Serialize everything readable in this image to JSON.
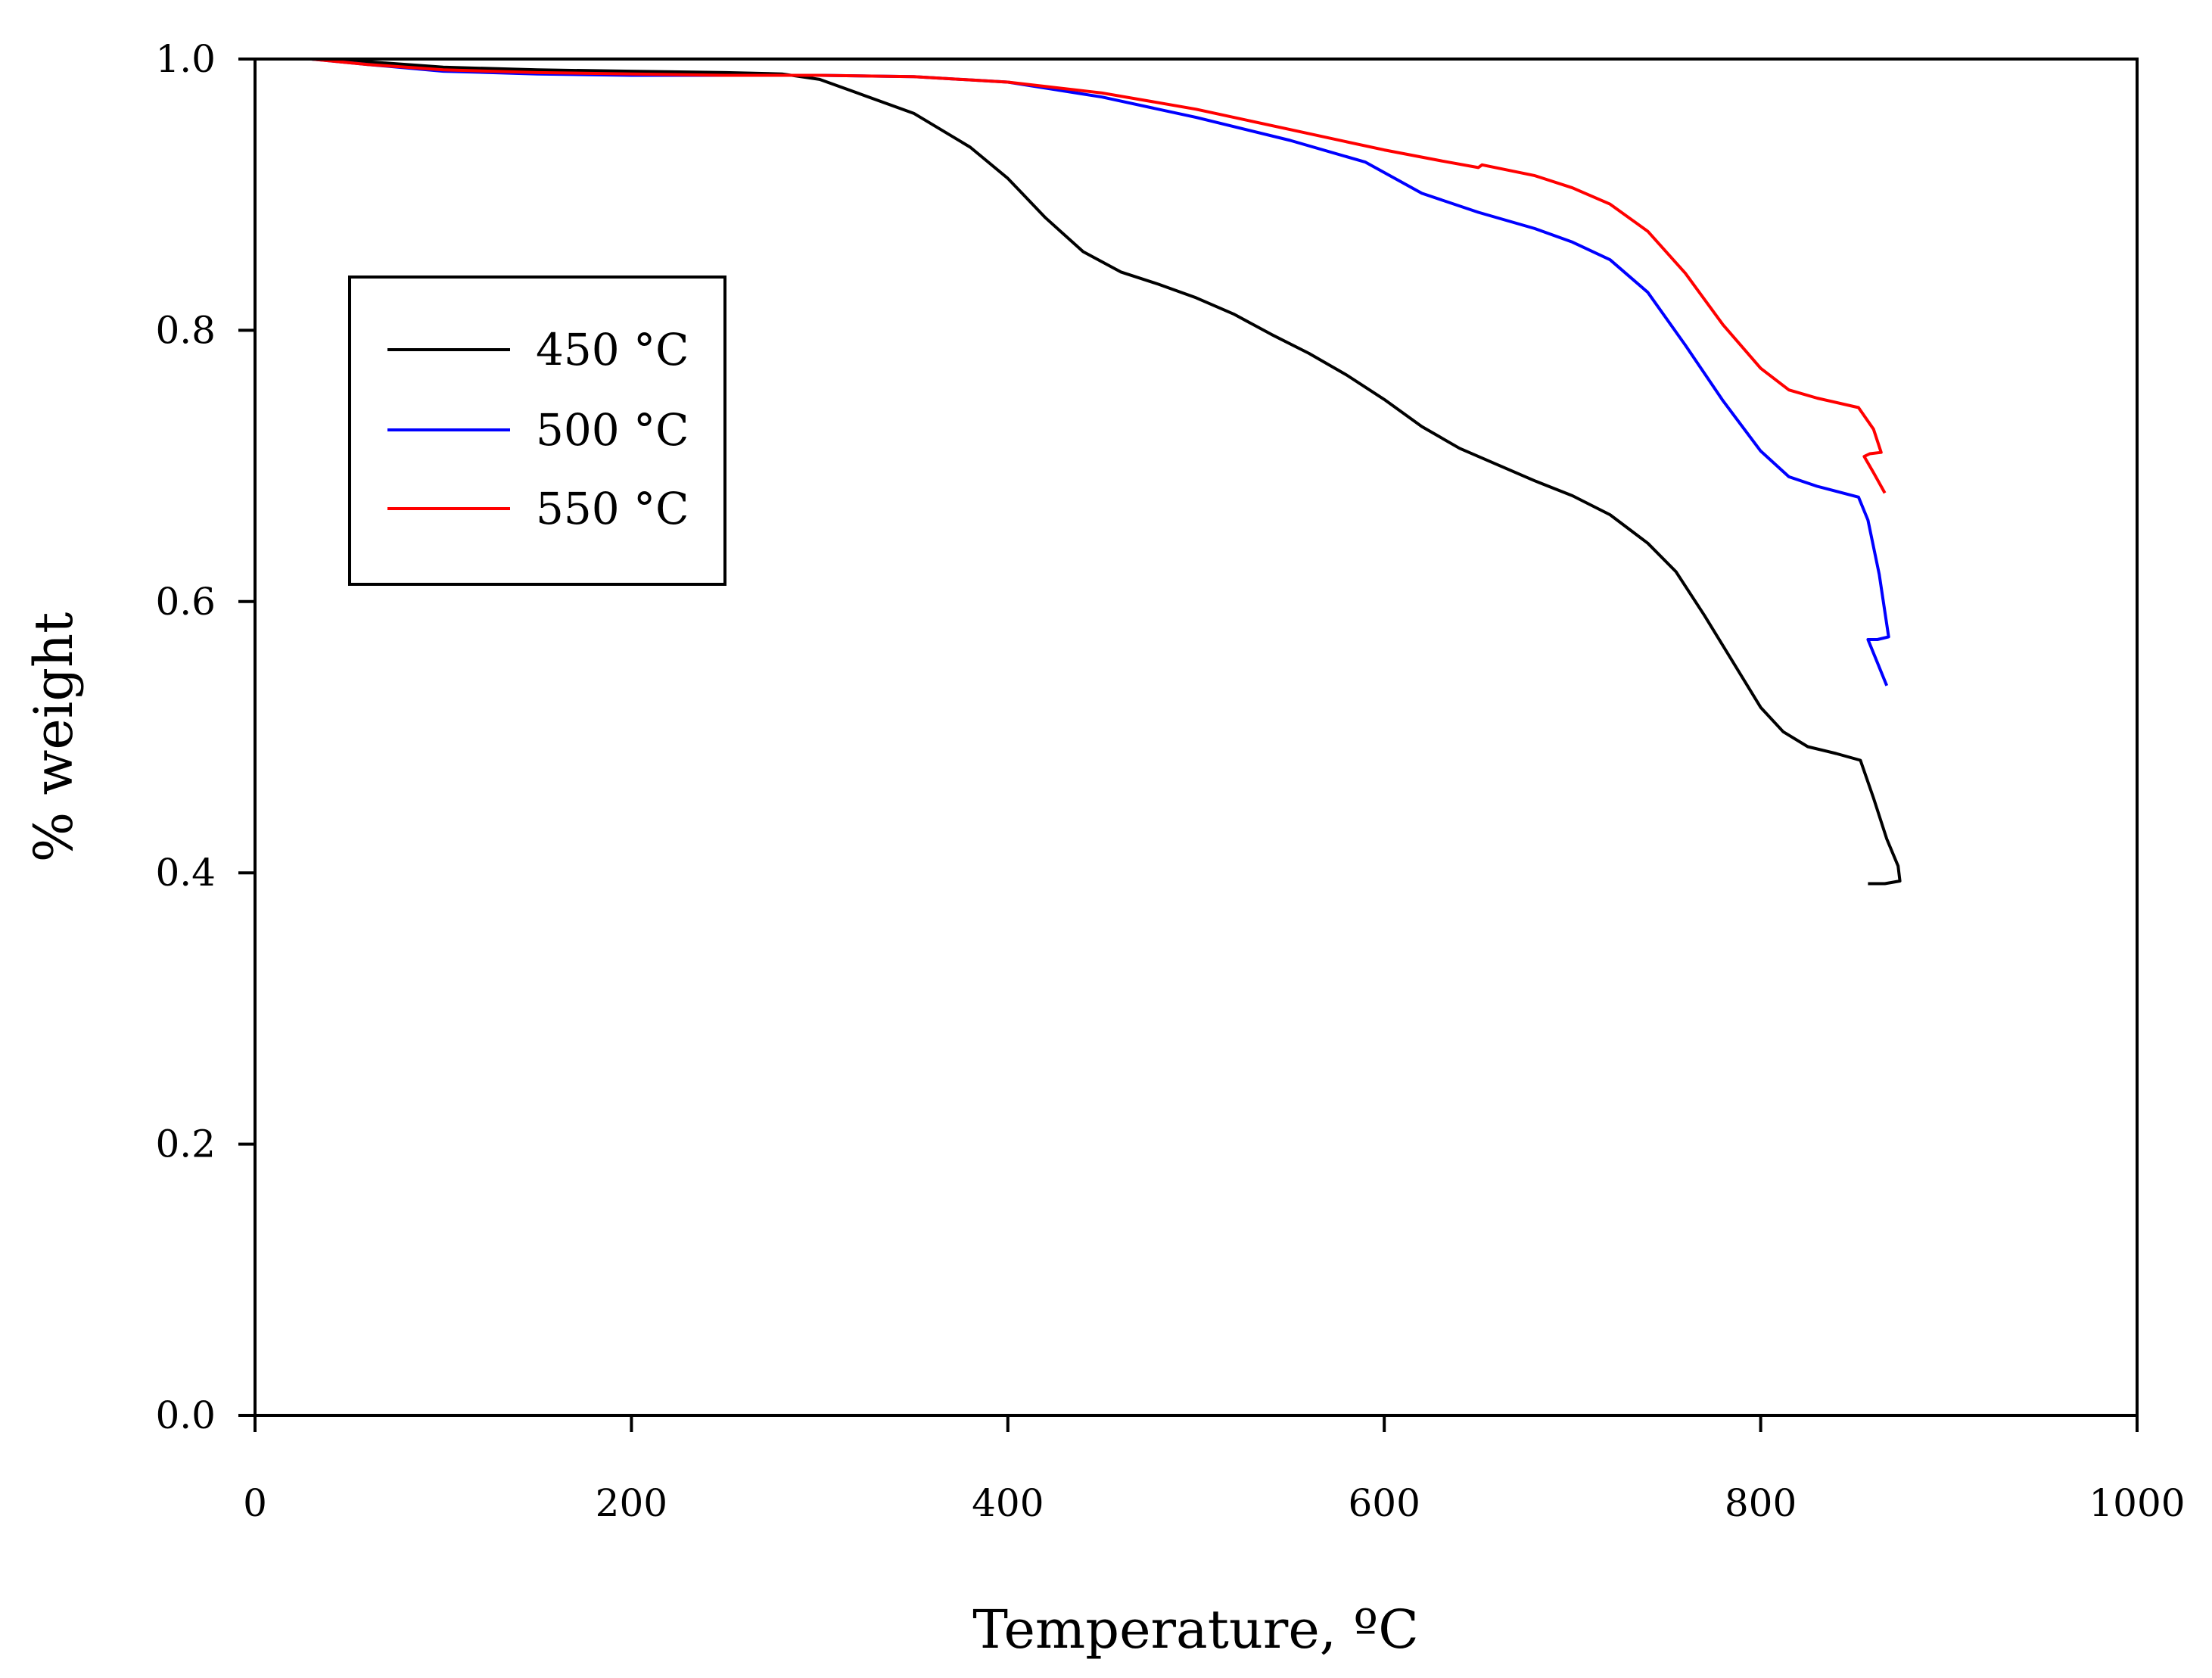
{
  "chart_data": {
    "type": "line",
    "title": "",
    "xlabel": "Temperature, ºC",
    "ylabel": "% weight",
    "xlim": [
      0,
      1000
    ],
    "ylim": [
      0.0,
      1.0
    ],
    "x_ticks": [
      0,
      200,
      400,
      600,
      800,
      1000
    ],
    "x_tick_labels": [
      "0",
      "200",
      "400",
      "600",
      "800",
      "1000"
    ],
    "y_ticks": [
      0.0,
      0.2,
      0.4,
      0.6,
      0.8,
      1.0
    ],
    "y_tick_labels": [
      "0.0",
      "0.2",
      "0.4",
      "0.6",
      "0.8",
      "1.0"
    ],
    "grid": false,
    "legend_position": "upper-left",
    "series": [
      {
        "name": "450 °C",
        "color": "#000000",
        "points": [
          [
            30,
            1.0
          ],
          [
            60,
            0.998
          ],
          [
            100,
            0.994
          ],
          [
            150,
            0.992
          ],
          [
            200,
            0.991
          ],
          [
            250,
            0.99
          ],
          [
            280,
            0.989
          ],
          [
            300,
            0.985
          ],
          [
            320,
            0.975
          ],
          [
            350,
            0.96
          ],
          [
            380,
            0.935
          ],
          [
            400,
            0.912
          ],
          [
            420,
            0.883
          ],
          [
            440,
            0.858
          ],
          [
            460,
            0.843
          ],
          [
            480,
            0.834
          ],
          [
            500,
            0.824
          ],
          [
            520,
            0.812
          ],
          [
            540,
            0.797
          ],
          [
            560,
            0.783
          ],
          [
            580,
            0.767
          ],
          [
            600,
            0.749
          ],
          [
            620,
            0.729
          ],
          [
            640,
            0.713
          ],
          [
            660,
            0.701
          ],
          [
            680,
            0.689
          ],
          [
            700,
            0.678
          ],
          [
            720,
            0.664
          ],
          [
            740,
            0.643
          ],
          [
            755,
            0.622
          ],
          [
            770,
            0.59
          ],
          [
            785,
            0.556
          ],
          [
            800,
            0.522
          ],
          [
            812,
            0.504
          ],
          [
            825,
            0.493
          ],
          [
            840,
            0.488
          ],
          [
            853,
            0.483
          ],
          [
            860,
            0.455
          ],
          [
            867,
            0.425
          ],
          [
            873,
            0.405
          ],
          [
            874,
            0.394
          ],
          [
            866,
            0.392
          ],
          [
            857,
            0.392
          ]
        ]
      },
      {
        "name": "500 °C",
        "color": "#0000ff",
        "points": [
          [
            30,
            1.0
          ],
          [
            60,
            0.996
          ],
          [
            100,
            0.991
          ],
          [
            150,
            0.989
          ],
          [
            200,
            0.988
          ],
          [
            250,
            0.988
          ],
          [
            300,
            0.988
          ],
          [
            350,
            0.987
          ],
          [
            400,
            0.983
          ],
          [
            450,
            0.972
          ],
          [
            500,
            0.957
          ],
          [
            550,
            0.94
          ],
          [
            590,
            0.924
          ],
          [
            620,
            0.901
          ],
          [
            650,
            0.887
          ],
          [
            680,
            0.875
          ],
          [
            700,
            0.865
          ],
          [
            720,
            0.852
          ],
          [
            740,
            0.828
          ],
          [
            760,
            0.789
          ],
          [
            780,
            0.748
          ],
          [
            800,
            0.711
          ],
          [
            815,
            0.692
          ],
          [
            830,
            0.685
          ],
          [
            852,
            0.677
          ],
          [
            857,
            0.66
          ],
          [
            863,
            0.62
          ],
          [
            868,
            0.574
          ],
          [
            862,
            0.572
          ],
          [
            857,
            0.572
          ],
          [
            862,
            0.555
          ],
          [
            867,
            0.538
          ]
        ]
      },
      {
        "name": "550 °C",
        "color": "#ff0000",
        "points": [
          [
            30,
            1.0
          ],
          [
            60,
            0.996
          ],
          [
            100,
            0.992
          ],
          [
            150,
            0.99
          ],
          [
            200,
            0.989
          ],
          [
            250,
            0.988
          ],
          [
            300,
            0.988
          ],
          [
            350,
            0.987
          ],
          [
            400,
            0.983
          ],
          [
            450,
            0.975
          ],
          [
            500,
            0.963
          ],
          [
            550,
            0.948
          ],
          [
            600,
            0.933
          ],
          [
            630,
            0.925
          ],
          [
            650,
            0.92
          ],
          [
            652,
            0.922
          ],
          [
            680,
            0.914
          ],
          [
            700,
            0.905
          ],
          [
            720,
            0.893
          ],
          [
            740,
            0.873
          ],
          [
            760,
            0.842
          ],
          [
            780,
            0.804
          ],
          [
            800,
            0.772
          ],
          [
            815,
            0.756
          ],
          [
            830,
            0.75
          ],
          [
            852,
            0.743
          ],
          [
            860,
            0.727
          ],
          [
            864,
            0.71
          ],
          [
            858,
            0.709
          ],
          [
            855,
            0.707
          ],
          [
            860,
            0.695
          ],
          [
            866,
            0.68
          ]
        ]
      }
    ]
  }
}
